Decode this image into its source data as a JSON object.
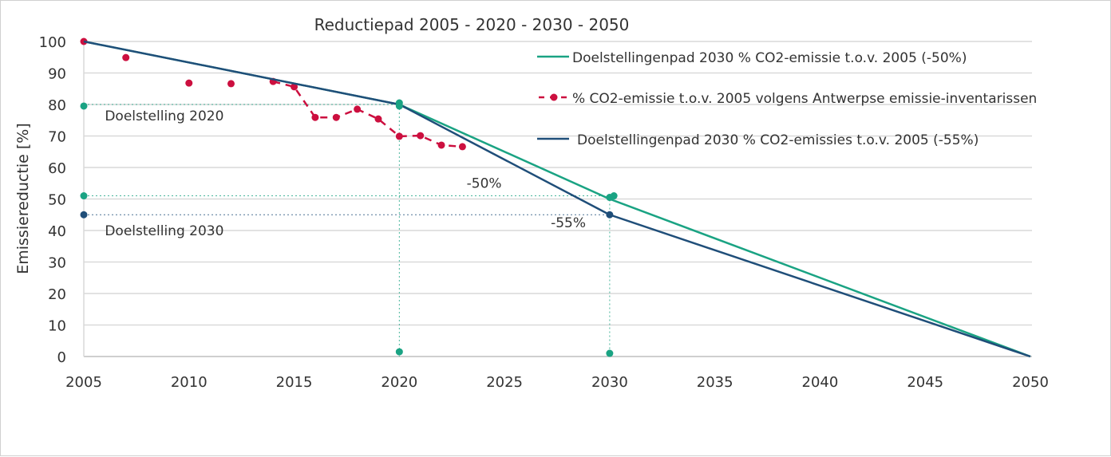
{
  "chart_data": {
    "type": "line",
    "title": "Reductiepad 2005 - 2020 - 2030 - 2050",
    "xlabel": "",
    "ylabel": "Emissiereductie [%]",
    "xlim": [
      2005,
      2050
    ],
    "ylim": [
      0,
      100
    ],
    "xticks": [
      2005,
      2010,
      2015,
      2020,
      2025,
      2030,
      2035,
      2040,
      2045,
      2050
    ],
    "yticks": [
      0,
      10,
      20,
      30,
      40,
      50,
      60,
      70,
      80,
      90,
      100
    ],
    "grid": "horizontal",
    "legend_placement": "top-right",
    "series": [
      {
        "name": "Doelstellingenpad 2030 % CO2-emissie t.o.v. 2005 (-50%)",
        "color": "#1aa383",
        "style": "solid",
        "x": [
          2005,
          2020,
          2030,
          2050
        ],
        "y": [
          100,
          80,
          50,
          0
        ]
      },
      {
        "name": "% CO2-emissie t.o.v. 2005 volgens Antwerpse emissie-inventarissen",
        "color": "#cc0f3f",
        "style": "dashed-markers",
        "x": [
          2005,
          2007,
          2010,
          2012,
          2014,
          2015,
          2016,
          2017,
          2018,
          2019,
          2020,
          2021,
          2022,
          2023
        ],
        "y": [
          100,
          94.9,
          86.8,
          86.6,
          87.3,
          85.6,
          75.9,
          75.9,
          78.5,
          75.4,
          69.9,
          70.1,
          67.1,
          66.6
        ]
      },
      {
        "name": "Doelstellingenpad 2030 % CO2-emissies t.o.v. 2005 (-55%)",
        "color": "#1f4e79",
        "style": "solid",
        "x": [
          2005,
          2020,
          2030,
          2050
        ],
        "y": [
          100,
          80,
          45,
          0
        ]
      }
    ],
    "markers": [
      {
        "x": 2005,
        "y": 79.5,
        "color": "#1aa383"
      },
      {
        "x": 2005,
        "y": 51,
        "color": "#1aa383"
      },
      {
        "x": 2020,
        "y": 80.5,
        "color": "#1aa383"
      },
      {
        "x": 2020,
        "y": 79.5,
        "color": "#1aa383"
      },
      {
        "x": 2020,
        "y": 1.5,
        "color": "#1aa383"
      },
      {
        "x": 2030,
        "y": 50.5,
        "color": "#1aa383"
      },
      {
        "x": 2030.2,
        "y": 51,
        "color": "#1aa383"
      },
      {
        "x": 2030,
        "y": 1,
        "color": "#1aa383"
      },
      {
        "x": 2005,
        "y": 45,
        "color": "#1f4e79"
      },
      {
        "x": 2030,
        "y": 45,
        "color": "#1f4e79"
      }
    ],
    "guides": [
      {
        "x1": 2005,
        "y1": 80,
        "x2": 2020,
        "y2": 80,
        "color": "#1aa383"
      },
      {
        "x1": 2020,
        "y1": 80,
        "x2": 2020,
        "y2": 0,
        "color": "#1aa383"
      },
      {
        "x1": 2005,
        "y1": 51,
        "x2": 2030,
        "y2": 51,
        "color": "#1aa383"
      },
      {
        "x1": 2030,
        "y1": 51,
        "x2": 2030,
        "y2": 0,
        "color": "#1aa383"
      },
      {
        "x1": 2005,
        "y1": 45,
        "x2": 2030,
        "y2": 45,
        "color": "#1f4e79"
      }
    ],
    "annotations": [
      {
        "text": "Doelstelling 2020",
        "x": 2006,
        "y": 75
      },
      {
        "text": "-50%",
        "x": 2023.2,
        "y": 53.5
      },
      {
        "text": "Doelstelling 2030",
        "x": 2006,
        "y": 38.5
      },
      {
        "text": "-55%",
        "x": 2027.2,
        "y": 41
      }
    ]
  }
}
